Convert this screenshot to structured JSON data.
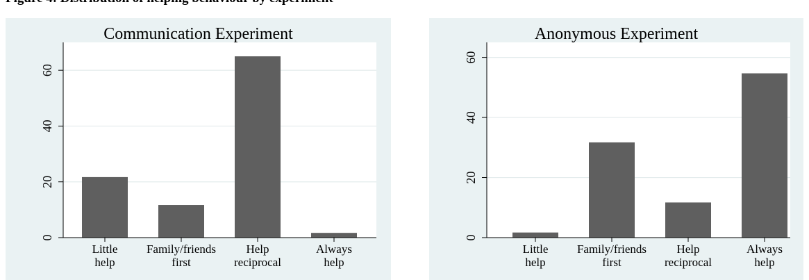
{
  "caption": "Figure 4: Distribution of helping behaviour by experiment",
  "chart_data": [
    {
      "type": "bar",
      "title": "Communication Experiment",
      "categories": [
        [
          "Little",
          "help"
        ],
        [
          "Family/friends",
          "first"
        ],
        [
          "Help",
          "reciprocal"
        ],
        [
          "Always",
          "help"
        ]
      ],
      "values": [
        21.7,
        11.7,
        65.0,
        1.7
      ],
      "ylim": [
        0,
        70
      ],
      "yticks": [
        0,
        20,
        40,
        60
      ],
      "xlabel": "",
      "ylabel": "",
      "grid": true,
      "bar_color": "#5f5f5f",
      "plot_bg": "#ffffff",
      "panel_bg": "#eaf2f3"
    },
    {
      "type": "bar",
      "title": "Anonymous Experiment",
      "categories": [
        [
          "Little",
          "help"
        ],
        [
          "Family/friends",
          "first"
        ],
        [
          "Help",
          "reciprocal"
        ],
        [
          "Always",
          "help"
        ]
      ],
      "values": [
        1.7,
        31.7,
        11.7,
        54.7
      ],
      "ylim": [
        0,
        65
      ],
      "yticks": [
        0,
        20,
        40,
        60
      ],
      "xlabel": "",
      "ylabel": "",
      "grid": true,
      "bar_color": "#5f5f5f",
      "plot_bg": "#ffffff",
      "panel_bg": "#eaf2f3"
    }
  ]
}
